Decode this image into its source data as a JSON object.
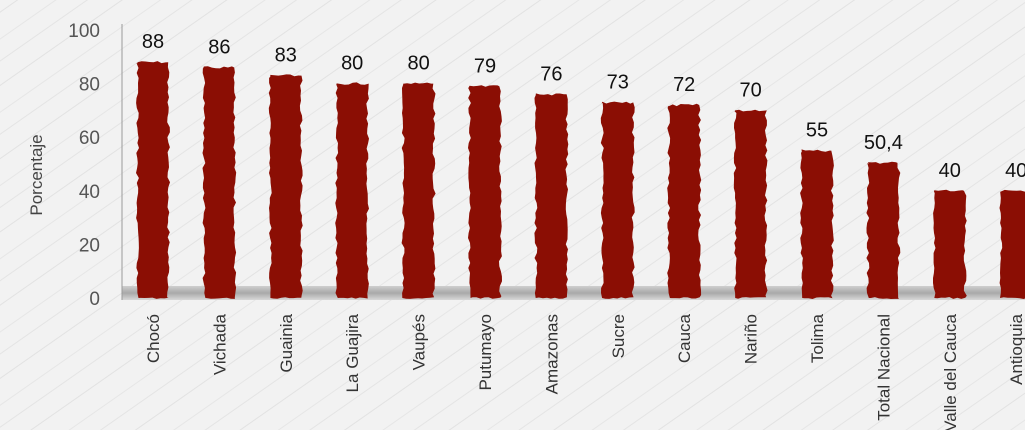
{
  "chart_data": {
    "type": "bar",
    "title": "",
    "xlabel": "",
    "ylabel": "Porcentaje",
    "ylim": [
      0,
      100
    ],
    "yticks": [
      "0",
      "20",
      "40",
      "60",
      "80",
      "100"
    ],
    "grid": false,
    "legend": "none",
    "categories": [
      "Chocó",
      "Vichada",
      "Guainia",
      "La Guajira",
      "Vaupés",
      "Putumayo",
      "Amazonas",
      "Sucre",
      "Cauca",
      "Nariño",
      "Tolima",
      "Total Nacional",
      "Valle del Cauca",
      "Antioquia"
    ],
    "values": [
      88,
      86,
      83,
      80,
      80,
      79,
      76,
      73,
      72,
      70,
      55,
      50.4,
      40,
      40
    ],
    "data_labels": [
      "88",
      "86",
      "83",
      "80",
      "80",
      "79",
      "76",
      "73",
      "72",
      "70",
      "55",
      "50,4",
      "40",
      "40"
    ],
    "colors": {
      "bar": "#8b0e04",
      "background": "#f2f2f2"
    }
  }
}
